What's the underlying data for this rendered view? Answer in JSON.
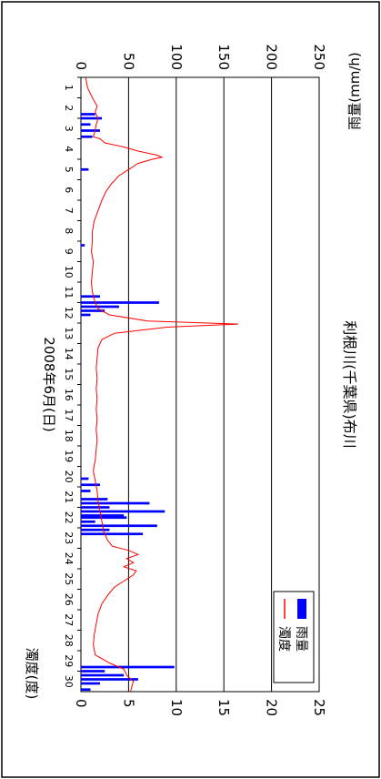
{
  "chart_data": {
    "type": "bar+line",
    "title": "利根川(千葉県)布川",
    "xlabel": "2008年6月(日)",
    "ylabel_left": "濁度(度)",
    "ylabel_right": "雨量(mm/h)",
    "orientation": "rotated 90° clockwise (x axis runs down the page)",
    "x_ticks": [
      "1",
      "2",
      "3",
      "4",
      "5",
      "6",
      "7",
      "8",
      "9",
      "10",
      "11",
      "12",
      "13",
      "14",
      "15",
      "16",
      "17",
      "18",
      "19",
      "20",
      "21",
      "22",
      "23",
      "24",
      "25",
      "26",
      "27",
      "28",
      "29",
      "30"
    ],
    "xlim": [
      1,
      31
    ],
    "ylim_left": [
      0,
      250
    ],
    "ylim_right": [
      0,
      25
    ],
    "left_ticks": [
      "0",
      "50",
      "100",
      "150",
      "200",
      "250"
    ],
    "right_ticks": [
      "0",
      "5",
      "10",
      "15",
      "20",
      "25"
    ],
    "grid": "horizontal lines at 50, 100, 150, 200 (turbidity scale)",
    "legend": {
      "placement": "top-right",
      "items": [
        {
          "label": "雨量",
          "color": "#0000ff",
          "kind": "bar"
        },
        {
          "label": "濁度",
          "color": "#ff0000",
          "kind": "line"
        }
      ]
    },
    "series": [
      {
        "name": "雨量",
        "axis": "right",
        "color": "#0000ff",
        "type": "bar",
        "points": [
          [
            2.8,
            1.5
          ],
          [
            3.0,
            2.2
          ],
          [
            3.3,
            1.0
          ],
          [
            3.6,
            2.0
          ],
          [
            3.9,
            1.2
          ],
          [
            5.5,
            0.8
          ],
          [
            9.2,
            0.4
          ],
          [
            11.7,
            2.0
          ],
          [
            12.0,
            8.2
          ],
          [
            12.2,
            4.0
          ],
          [
            12.4,
            2.5
          ],
          [
            12.6,
            1.0
          ],
          [
            20.6,
            0.8
          ],
          [
            20.9,
            2.0
          ],
          [
            21.2,
            1.0
          ],
          [
            21.6,
            2.8
          ],
          [
            21.8,
            7.2
          ],
          [
            22.0,
            3.0
          ],
          [
            22.2,
            8.8
          ],
          [
            22.4,
            4.5
          ],
          [
            22.5,
            4.8
          ],
          [
            22.7,
            1.5
          ],
          [
            22.9,
            8.0
          ],
          [
            23.1,
            3.0
          ],
          [
            23.3,
            6.5
          ],
          [
            29.8,
            9.8
          ],
          [
            30.0,
            2.5
          ],
          [
            30.2,
            4.5
          ],
          [
            30.4,
            6.0
          ],
          [
            30.6,
            2.0
          ],
          [
            30.9,
            1.0
          ]
        ]
      },
      {
        "name": "濁度",
        "axis": "left",
        "color": "#ff0000",
        "type": "line",
        "points": [
          [
            1.0,
            5
          ],
          [
            1.5,
            7
          ],
          [
            2.0,
            12
          ],
          [
            2.4,
            17
          ],
          [
            2.7,
            15
          ],
          [
            3.0,
            18
          ],
          [
            3.3,
            16
          ],
          [
            3.6,
            15
          ],
          [
            3.9,
            13
          ],
          [
            4.0,
            20
          ],
          [
            4.2,
            25
          ],
          [
            4.4,
            45
          ],
          [
            4.6,
            60
          ],
          [
            4.8,
            80
          ],
          [
            4.9,
            85
          ],
          [
            5.0,
            75
          ],
          [
            5.2,
            60
          ],
          [
            5.5,
            50
          ],
          [
            5.8,
            40
          ],
          [
            6.2,
            32
          ],
          [
            6.6,
            26
          ],
          [
            7.0,
            22
          ],
          [
            7.5,
            18
          ],
          [
            8.0,
            14
          ],
          [
            8.5,
            12
          ],
          [
            9.0,
            12
          ],
          [
            9.5,
            11
          ],
          [
            10.0,
            13
          ],
          [
            10.5,
            12
          ],
          [
            11.0,
            11
          ],
          [
            11.5,
            12
          ],
          [
            12.0,
            15
          ],
          [
            12.3,
            18
          ],
          [
            12.6,
            30
          ],
          [
            12.9,
            70
          ],
          [
            13.05,
            165
          ],
          [
            13.2,
            90
          ],
          [
            13.5,
            35
          ],
          [
            13.8,
            22
          ],
          [
            14.2,
            18
          ],
          [
            14.7,
            17
          ],
          [
            15.2,
            16
          ],
          [
            15.7,
            17
          ],
          [
            16.2,
            16
          ],
          [
            16.7,
            17
          ],
          [
            17.2,
            16
          ],
          [
            17.7,
            17
          ],
          [
            18.2,
            16
          ],
          [
            18.7,
            17
          ],
          [
            19.2,
            16
          ],
          [
            19.7,
            15
          ],
          [
            20.2,
            13
          ],
          [
            20.7,
            15
          ],
          [
            21.2,
            17
          ],
          [
            21.7,
            18
          ],
          [
            22.2,
            20
          ],
          [
            22.7,
            22
          ],
          [
            23.2,
            24
          ],
          [
            23.6,
            28
          ],
          [
            23.9,
            33
          ],
          [
            24.1,
            50
          ],
          [
            24.3,
            60
          ],
          [
            24.5,
            48
          ],
          [
            24.7,
            55
          ],
          [
            24.9,
            45
          ],
          [
            25.1,
            58
          ],
          [
            25.3,
            55
          ],
          [
            25.6,
            45
          ],
          [
            25.9,
            35
          ],
          [
            26.3,
            28
          ],
          [
            26.7,
            22
          ],
          [
            27.2,
            18
          ],
          [
            27.7,
            16
          ],
          [
            28.2,
            14
          ],
          [
            28.7,
            13
          ],
          [
            29.2,
            15
          ],
          [
            29.6,
            30
          ],
          [
            29.9,
            45
          ],
          [
            30.2,
            48
          ],
          [
            30.5,
            55
          ],
          [
            31.0,
            52
          ]
        ]
      }
    ]
  }
}
